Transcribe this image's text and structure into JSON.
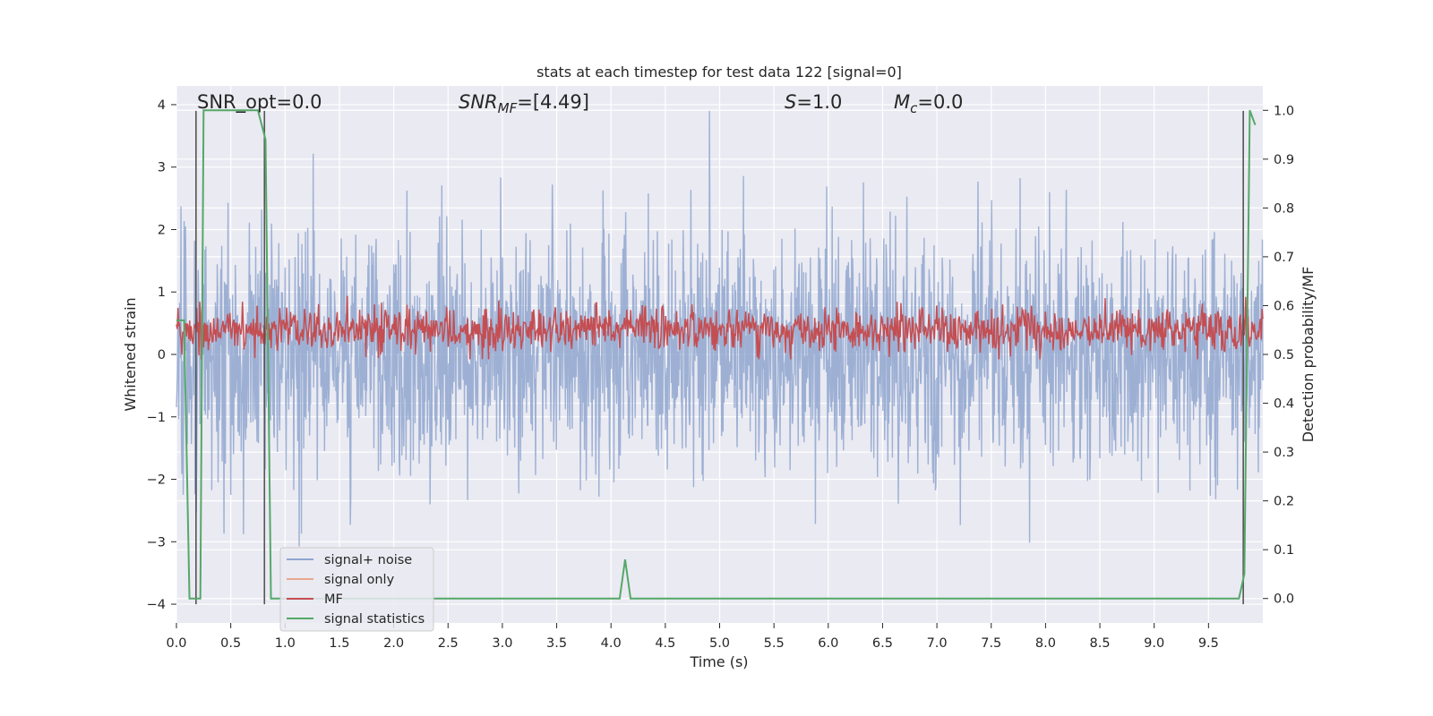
{
  "chart_data": {
    "type": "line",
    "title": "stats at each timestep for test data 122 [signal=0]",
    "xlabel": "Time (s)",
    "ylabel_left": "Whitened strain",
    "ylabel_right": "Detection probability/MF",
    "xlim": [
      0.0,
      10.0
    ],
    "ylim_left": [
      -4.3,
      4.3
    ],
    "ylim_right": [
      -0.05,
      1.05
    ],
    "xticks": [
      "0.0",
      "0.5",
      "1.0",
      "1.5",
      "2.0",
      "2.5",
      "3.0",
      "3.5",
      "4.0",
      "4.5",
      "5.0",
      "5.5",
      "6.0",
      "6.5",
      "7.0",
      "7.5",
      "8.0",
      "8.5",
      "9.0",
      "9.5"
    ],
    "xtick_values": [
      0.0,
      0.5,
      1.0,
      1.5,
      2.0,
      2.5,
      3.0,
      3.5,
      4.0,
      4.5,
      5.0,
      5.5,
      6.0,
      6.5,
      7.0,
      7.5,
      8.0,
      8.5,
      9.0,
      9.5
    ],
    "yticks_left": [
      "4",
      "3",
      "2",
      "1",
      "0",
      "−1",
      "−2",
      "−3",
      "−4"
    ],
    "ytick_values_left": [
      4,
      3,
      2,
      1,
      0,
      -1,
      -2,
      -3,
      -4
    ],
    "yticks_right": [
      "1.0",
      "0.9",
      "0.8",
      "0.7",
      "0.6",
      "0.5",
      "0.4",
      "0.3",
      "0.2",
      "0.1",
      "0.0"
    ],
    "ytick_values_right": [
      1.0,
      0.9,
      0.8,
      0.7,
      0.6,
      0.5,
      0.4,
      0.3,
      0.2,
      0.1,
      0.0
    ],
    "grid": true,
    "legend_position": "lower-left",
    "annotations": {
      "snr_opt": "SNR_opt=0.0",
      "snr_mf_a": "SNR",
      "snr_mf_b": "MF",
      "snr_mf_c": "=[4.49]",
      "s_a": "S",
      "s_b": "=1.0",
      "mc_a": "M",
      "mc_b": "c",
      "mc_c": "=0.0"
    },
    "series": [
      {
        "name": "signal+ noise",
        "color": "#8fa6cf",
        "axis": "left",
        "kind": "noise",
        "approx_range": [
          -4.0,
          3.9
        ]
      },
      {
        "name": "signal only",
        "color": "#e8a98f",
        "axis": "left",
        "values": []
      },
      {
        "name": "MF",
        "color": "#c44e52",
        "axis": "right",
        "kind": "noise",
        "approx_range": [
          0.5,
          0.6
        ]
      },
      {
        "name": "signal statistics",
        "color": "#55a868",
        "axis": "right",
        "x": [
          0.0,
          0.07,
          0.12,
          0.18,
          0.22,
          0.25,
          0.75,
          0.82,
          0.87,
          4.08,
          4.13,
          4.18,
          9.78,
          9.83,
          9.88,
          9.93
        ],
        "values": [
          0.57,
          0.57,
          0.0,
          0.0,
          0.0,
          1.0,
          1.0,
          0.94,
          0.0,
          0.0,
          0.08,
          0.0,
          0.0,
          0.05,
          1.0,
          0.97
        ]
      }
    ],
    "vertical_lines": {
      "color": "#555555",
      "x": [
        0.18,
        0.81,
        9.82
      ],
      "y_range_left": [
        -4.0,
        3.9
      ]
    }
  }
}
